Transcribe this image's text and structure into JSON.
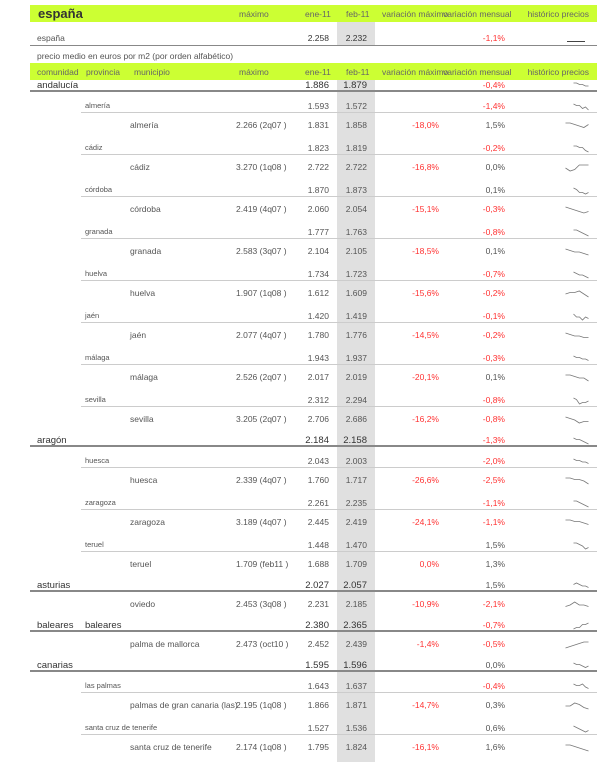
{
  "top": {
    "title": "españa",
    "maximo": "máximo",
    "ene": "ene-11",
    "feb": "feb-11",
    "var_max": "variación máximo",
    "var_mens": "variación mensual",
    "historico": "histórico precios"
  },
  "spain": {
    "name": "españa",
    "ene": "2.258",
    "feb": "2.232",
    "var_mens": "-1,1%",
    "spark": [
      1,
      1
    ]
  },
  "subtitle": "precio medio en euros por m2 (por orden alfabético)",
  "header": {
    "comunidad": "comunidad",
    "provincia": "provincia",
    "municipio": "municipio",
    "maximo": "máximo",
    "ene": "ene-11",
    "feb": "feb-11",
    "var_max": "variación máximo",
    "var_mens": "variación mensual",
    "historico": "histórico precios"
  },
  "colors": {
    "accent": "#ccff33",
    "negative": "#ff3333",
    "feb_column": "#e0e0e0"
  },
  "rows": [
    {
      "t": "C",
      "comunidad": "andalucía",
      "ene": "1.886",
      "feb": "1.879",
      "var_mens": "-0,4%",
      "spark": [
        5,
        5,
        4,
        4,
        3,
        3
      ]
    },
    {
      "t": "P",
      "provincia": "almería",
      "ene": "1.593",
      "feb": "1.572",
      "var_mens": "-1,4%",
      "spark": [
        5,
        4,
        4,
        2,
        3,
        1
      ]
    },
    {
      "t": "M",
      "municipio": "almería",
      "maximo": "2.266 (2q07 )",
      "ene": "1.831",
      "feb": "1.858",
      "var_max": "-18,0%",
      "var_mens": "1,5%",
      "spark": [
        5,
        5,
        4,
        3,
        2,
        4
      ]
    },
    {
      "t": "P",
      "provincia": "cádiz",
      "ene": "1.823",
      "feb": "1.819",
      "var_mens": "-0,2%",
      "spark": [
        5,
        5,
        4,
        4,
        2,
        1
      ]
    },
    {
      "t": "M",
      "municipio": "cádiz",
      "maximo": "3.270 (1q08 )",
      "ene": "2.722",
      "feb": "2.722",
      "var_max": "-16,8%",
      "var_mens": "0,0%",
      "spark": [
        3,
        1,
        2,
        5,
        5,
        5
      ]
    },
    {
      "t": "P",
      "provincia": "córdoba",
      "ene": "1.870",
      "feb": "1.873",
      "var_mens": "0,1%",
      "spark": [
        5,
        4,
        2,
        2,
        1,
        2
      ]
    },
    {
      "t": "M",
      "municipio": "córdoba",
      "maximo": "2.419 (4q07 )",
      "ene": "2.060",
      "feb": "2.054",
      "var_max": "-15,1%",
      "var_mens": "-0,3%",
      "spark": [
        5,
        4,
        3,
        2,
        1,
        2
      ]
    },
    {
      "t": "P",
      "provincia": "granada",
      "ene": "1.777",
      "feb": "1.763",
      "var_mens": "-0,8%",
      "spark": [
        5,
        5,
        4,
        3,
        2,
        1
      ]
    },
    {
      "t": "M",
      "municipio": "granada",
      "maximo": "2.583 (3q07 )",
      "ene": "2.104",
      "feb": "2.105",
      "var_max": "-18,5%",
      "var_mens": "0,1%",
      "spark": [
        5,
        4,
        3,
        3,
        2,
        1
      ]
    },
    {
      "t": "P",
      "provincia": "huelva",
      "ene": "1.734",
      "feb": "1.723",
      "var_mens": "-0,7%",
      "spark": [
        5,
        4,
        3,
        3,
        2,
        1
      ]
    },
    {
      "t": "M",
      "municipio": "huelva",
      "maximo": "1.907 (1q08 )",
      "ene": "1.612",
      "feb": "1.609",
      "var_max": "-15,6%",
      "var_mens": "-0,2%",
      "spark": [
        3,
        4,
        4,
        5,
        3,
        1
      ]
    },
    {
      "t": "P",
      "provincia": "jaén",
      "ene": "1.420",
      "feb": "1.419",
      "var_mens": "-0,1%",
      "spark": [
        5,
        3,
        3,
        1,
        3,
        2
      ]
    },
    {
      "t": "M",
      "municipio": "jaén",
      "maximo": "2.077 (4q07 )",
      "ene": "1.780",
      "feb": "1.776",
      "var_max": "-14,5%",
      "var_mens": "-0,2%",
      "spark": [
        5,
        4,
        3,
        3,
        2,
        2
      ]
    },
    {
      "t": "P",
      "provincia": "málaga",
      "ene": "1.943",
      "feb": "1.937",
      "var_mens": "-0,3%",
      "spark": [
        5,
        4,
        4,
        3,
        3,
        2
      ]
    },
    {
      "t": "M",
      "municipio": "málaga",
      "maximo": "2.526 (2q07 )",
      "ene": "2.017",
      "feb": "2.019",
      "var_max": "-20,1%",
      "var_mens": "0,1%",
      "spark": [
        5,
        5,
        4,
        3,
        3,
        1
      ]
    },
    {
      "t": "P",
      "provincia": "sevilla",
      "ene": "2.312",
      "feb": "2.294",
      "var_mens": "-0,8%",
      "spark": [
        5,
        4,
        1,
        2,
        2,
        3
      ]
    },
    {
      "t": "M",
      "municipio": "sevilla",
      "maximo": "3.205 (2q07 )",
      "ene": "2.706",
      "feb": "2.686",
      "var_max": "-16,2%",
      "var_mens": "-0,8%",
      "spark": [
        5,
        4,
        3,
        1,
        2,
        2
      ]
    },
    {
      "t": "C",
      "comunidad": "aragón",
      "ene": "2.184",
      "feb": "2.158",
      "var_mens": "-1,3%",
      "spark": [
        5,
        4,
        4,
        3,
        2,
        1
      ]
    },
    {
      "t": "P",
      "provincia": "huesca",
      "ene": "2.043",
      "feb": "2.003",
      "var_mens": "-2,0%",
      "spark": [
        5,
        4,
        4,
        3,
        3,
        2
      ]
    },
    {
      "t": "M",
      "municipio": "huesca",
      "maximo": "2.339 (4q07 )",
      "ene": "1.760",
      "feb": "1.717",
      "var_max": "-26,6%",
      "var_mens": "-2,5%",
      "spark": [
        5,
        5,
        4,
        4,
        3,
        1
      ]
    },
    {
      "t": "P",
      "provincia": "zaragoza",
      "ene": "2.261",
      "feb": "2.235",
      "var_mens": "-1,1%",
      "spark": [
        5,
        5,
        4,
        3,
        2,
        1
      ]
    },
    {
      "t": "M",
      "municipio": "zaragoza",
      "maximo": "3.189 (4q07 )",
      "ene": "2.445",
      "feb": "2.419",
      "var_max": "-24,1%",
      "var_mens": "-1,1%",
      "spark": [
        5,
        5,
        4,
        4,
        3,
        2
      ]
    },
    {
      "t": "P",
      "provincia": "teruel",
      "ene": "1.448",
      "feb": "1.470",
      "var_mens": "1,5%",
      "spark": [
        5,
        5,
        4,
        3,
        1,
        2
      ]
    },
    {
      "t": "M",
      "municipio": "teruel",
      "maximo": "1.709 (feb11 )",
      "ene": "1.688",
      "feb": "1.709",
      "var_max": "0,0%",
      "var_mens": "1,3%"
    },
    {
      "t": "C",
      "comunidad": "asturias",
      "ene": "2.027",
      "feb": "2.057",
      "var_mens": "1,5%",
      "spark": [
        4,
        5,
        4,
        3,
        3,
        2
      ]
    },
    {
      "t": "M",
      "municipio": "oviedo",
      "maximo": "2.453 (3q08 )",
      "ene": "2.231",
      "feb": "2.185",
      "var_max": "-10,9%",
      "var_mens": "-2,1%",
      "spark": [
        2,
        3,
        5,
        3,
        3,
        2
      ]
    },
    {
      "t": "C",
      "comunidad": "baleares",
      "provincia": "baleares",
      "ene": "2.380",
      "feb": "2.365",
      "var_mens": "-0,7%",
      "spark": [
        1,
        2,
        2,
        4,
        4,
        5
      ]
    },
    {
      "t": "M",
      "municipio": "palma de mallorca",
      "maximo": "2.473 (oct10 )",
      "ene": "2.452",
      "feb": "2.439",
      "var_max": "-1,4%",
      "var_mens": "-0,5%",
      "spark": [
        1,
        2,
        3,
        4,
        5,
        5
      ]
    },
    {
      "t": "C",
      "comunidad": "canarias",
      "ene": "1.595",
      "feb": "1.596",
      "var_mens": "0,0%",
      "spark": [
        5,
        4,
        4,
        3,
        2,
        3
      ]
    },
    {
      "t": "P",
      "provincia": "las palmas",
      "ene": "1.643",
      "feb": "1.637",
      "var_mens": "-0,4%",
      "spark": [
        5,
        4,
        4,
        5,
        3,
        2
      ]
    },
    {
      "t": "M",
      "municipio": "palmas de gran canaria (las)",
      "maximo": "2.195 (1q08 )",
      "ene": "1.866",
      "feb": "1.871",
      "var_max": "-14,7%",
      "var_mens": "0,3%",
      "spark": [
        3,
        3,
        5,
        4,
        2,
        1
      ]
    },
    {
      "t": "P",
      "provincia": "santa cruz de tenerife",
      "ene": "1.527",
      "feb": "1.536",
      "var_mens": "0,6%",
      "spark": [
        5,
        4,
        3,
        2,
        1,
        2
      ]
    },
    {
      "t": "M",
      "municipio": "santa cruz de tenerife",
      "maximo": "2.174 (1q08 )",
      "ene": "1.795",
      "feb": "1.824",
      "var_max": "-16,1%",
      "var_mens": "1,6%",
      "spark": [
        5,
        5,
        4,
        3,
        2,
        1
      ]
    }
  ]
}
